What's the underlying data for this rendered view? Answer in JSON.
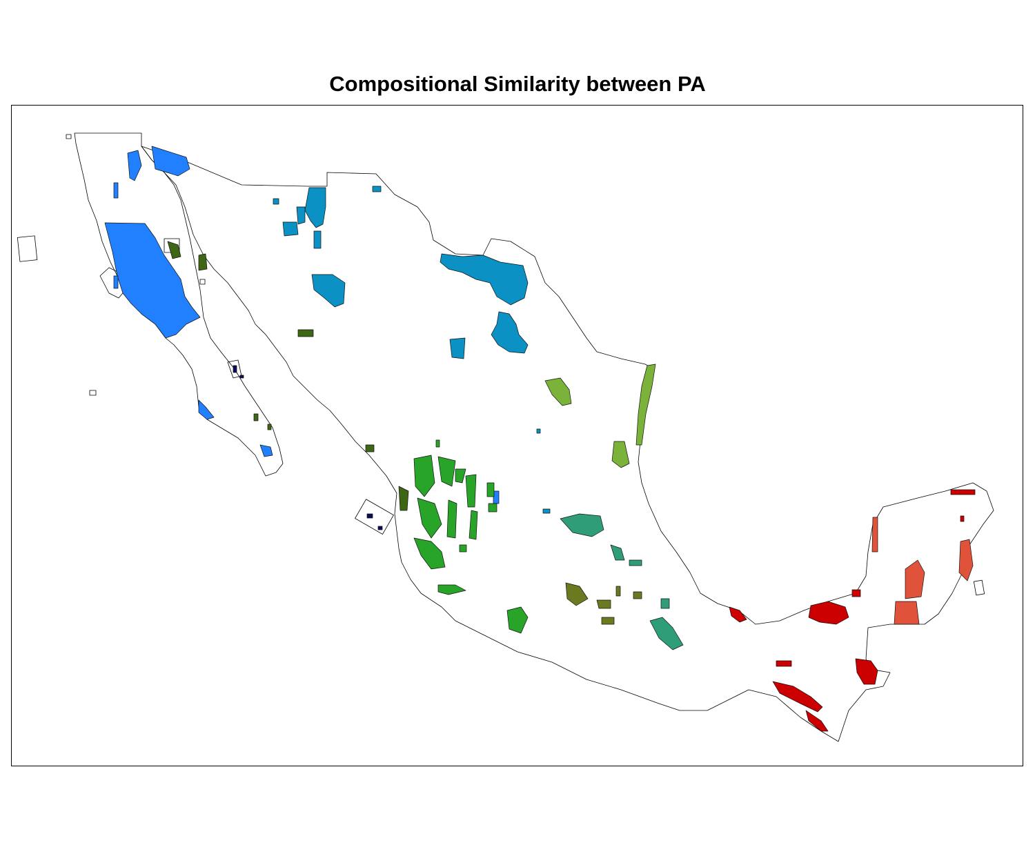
{
  "title": "Compositional Similarity between PA",
  "colors": {
    "cluster_blue": "#2180ff",
    "cluster_teal_blue": "#0b91c4",
    "cluster_navy": "#0b0b5a",
    "cluster_dark_olive": "#3f6614",
    "cluster_green": "#28a528",
    "cluster_light_olive": "#7bb23a",
    "cluster_olive_brown": "#6b7a20",
    "cluster_teal_green": "#2f9e78",
    "cluster_red": "#cc0000",
    "cluster_orange_red": "#e0523a",
    "outline": "#000000"
  }
}
